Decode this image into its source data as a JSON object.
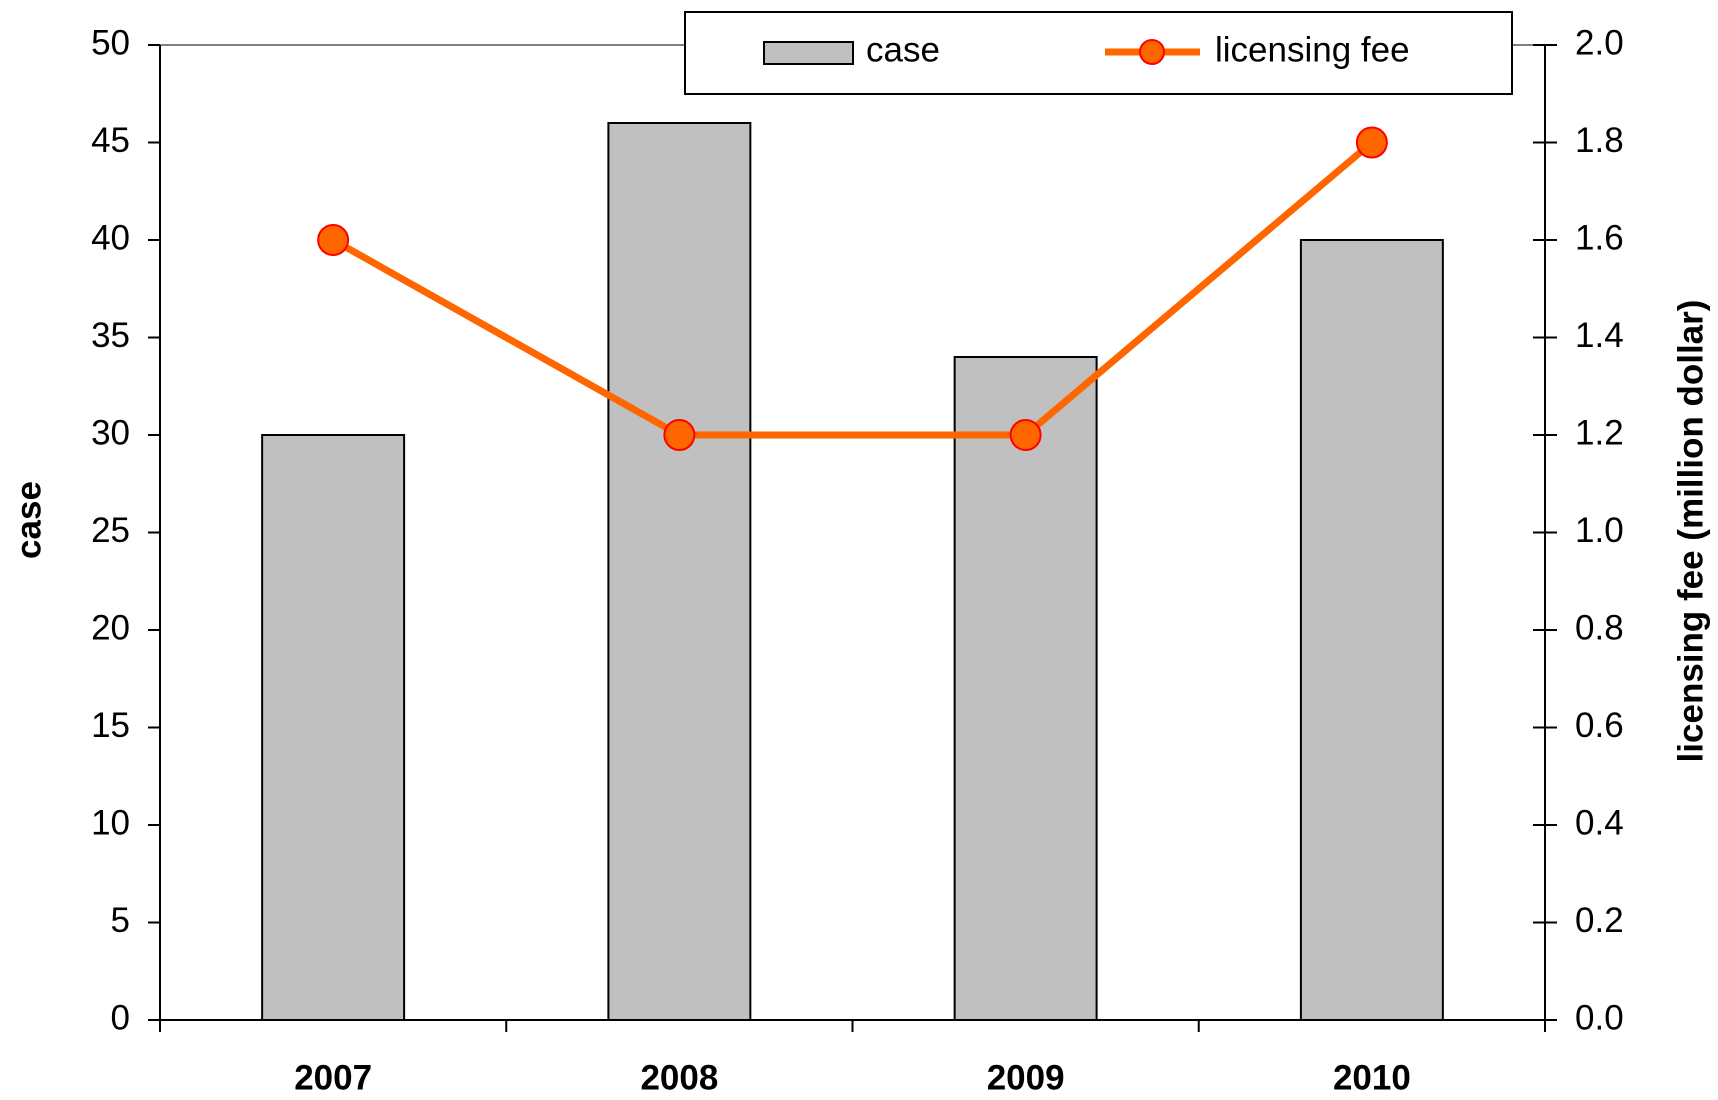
{
  "chart_data": {
    "type": "bar",
    "categories": [
      "2007",
      "2008",
      "2009",
      "2010"
    ],
    "series": [
      {
        "name": "case",
        "type": "bar",
        "color": "#c0c0c0",
        "values": [
          30,
          46,
          34,
          40
        ]
      },
      {
        "name": "licensing fee",
        "type": "line",
        "axis": "y2",
        "color": "#ff6600",
        "values": [
          1.6,
          1.2,
          1.2,
          1.8
        ]
      }
    ],
    "ylabel": "case",
    "y2label": "licensing fee (million dollar)",
    "ylim": [
      0,
      50
    ],
    "yticks": [
      0,
      5,
      10,
      15,
      20,
      25,
      30,
      35,
      40,
      45,
      50
    ],
    "y2lim": [
      0,
      2
    ],
    "y2ticks": [
      {
        "value": 0,
        "label": "0.0"
      },
      0.2,
      0.4,
      0.6,
      0.8,
      {
        "value": 1,
        "label": "1.0"
      },
      1.2,
      1.4,
      1.6,
      1.8,
      {
        "value": 2,
        "label": "2.0"
      }
    ],
    "legend": "top"
  }
}
